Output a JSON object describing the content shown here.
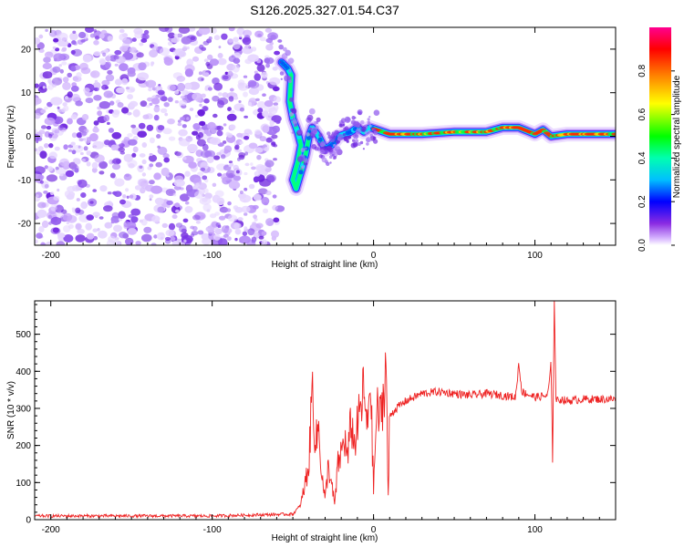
{
  "title": "S126.2025.327.01.54.C37",
  "chart_data": [
    {
      "type": "heatmap",
      "xlabel": "Height of straight line (km)",
      "ylabel": "Frequency (Hz)",
      "xlim": [
        -210,
        150
      ],
      "ylim": [
        -25,
        25
      ],
      "xticks": [
        -200,
        -100,
        0,
        100
      ],
      "yticks": [
        -20,
        -10,
        0,
        10,
        20
      ],
      "colorbar": {
        "label": "Normalized spectral amplitude",
        "range": [
          0,
          1
        ],
        "ticks": [
          "0.0",
          "0.2",
          "0.4",
          "0.6",
          "0.8"
        ],
        "colors": [
          "#ffffff",
          "#d8b8ff",
          "#8a2be2",
          "#0000ff",
          "#00bfff",
          "#00ffb0",
          "#00ff00",
          "#ffff00",
          "#ff8000",
          "#ff0000",
          "#ff0090"
        ]
      },
      "noise_region_x": [
        -210,
        -58
      ],
      "ridge": [
        {
          "x": -57,
          "y": 17
        },
        {
          "x": -53,
          "y": 15.5
        },
        {
          "x": -51,
          "y": 14
        },
        {
          "x": -52,
          "y": 8
        },
        {
          "x": -50,
          "y": 4
        },
        {
          "x": -47,
          "y": 1
        },
        {
          "x": -45,
          "y": -2
        },
        {
          "x": -47,
          "y": -6
        },
        {
          "x": -50,
          "y": -10
        },
        {
          "x": -48,
          "y": -12
        },
        {
          "x": -44,
          "y": -7
        },
        {
          "x": -42,
          "y": -4
        },
        {
          "x": -40,
          "y": 0
        },
        {
          "x": -38,
          "y": 2
        },
        {
          "x": -34,
          "y": 0
        },
        {
          "x": -30,
          "y": -3
        },
        {
          "x": -26,
          "y": -2
        },
        {
          "x": -22,
          "y": 0
        },
        {
          "x": -18,
          "y": 0.5
        },
        {
          "x": -14,
          "y": 1
        },
        {
          "x": -10,
          "y": 2
        },
        {
          "x": -6,
          "y": 1
        },
        {
          "x": -2,
          "y": 2
        },
        {
          "x": 2,
          "y": 1.5
        },
        {
          "x": 10,
          "y": 0.5
        },
        {
          "x": 30,
          "y": 0.5
        },
        {
          "x": 50,
          "y": 1
        },
        {
          "x": 70,
          "y": 1
        },
        {
          "x": 80,
          "y": 2
        },
        {
          "x": 90,
          "y": 2
        },
        {
          "x": 100,
          "y": 0.5
        },
        {
          "x": 105,
          "y": 1.5
        },
        {
          "x": 110,
          "y": 0
        },
        {
          "x": 120,
          "y": 0.5
        },
        {
          "x": 150,
          "y": 0.5
        }
      ]
    },
    {
      "type": "line",
      "xlabel": "Height of straight line (km)",
      "ylabel": "SNR (10 * v/v)",
      "xlim": [
        -210,
        150
      ],
      "ylim": [
        0,
        590
      ],
      "xticks": [
        -200,
        -100,
        0,
        100
      ],
      "yticks": [
        0,
        100,
        200,
        300,
        400,
        500
      ],
      "series": [
        {
          "name": "SNR",
          "color": "#ee2222",
          "x": [
            -210,
            -100,
            -50,
            -45,
            -40,
            -38,
            -36,
            -34,
            -32,
            -30,
            -28,
            -26,
            -24,
            -22,
            -20,
            -18,
            -16,
            -14,
            -12,
            -10,
            -8,
            -6,
            -4,
            -2,
            0,
            2,
            4,
            6,
            8,
            9,
            10,
            14,
            20,
            30,
            40,
            50,
            60,
            70,
            80,
            88,
            90,
            92,
            100,
            108,
            110,
            111,
            112,
            113,
            114,
            116,
            120,
            130,
            150
          ],
          "y": [
            10,
            10,
            15,
            40,
            150,
            370,
            200,
            250,
            120,
            50,
            150,
            90,
            40,
            150,
            180,
            220,
            160,
            270,
            200,
            250,
            300,
            350,
            230,
            400,
            80,
            300,
            270,
            330,
            430,
            25,
            280,
            300,
            320,
            340,
            345,
            340,
            335,
            340,
            335,
            330,
            420,
            345,
            330,
            335,
            420,
            150,
            600,
            330,
            320,
            325,
            320,
            325,
            325
          ]
        }
      ]
    }
  ]
}
